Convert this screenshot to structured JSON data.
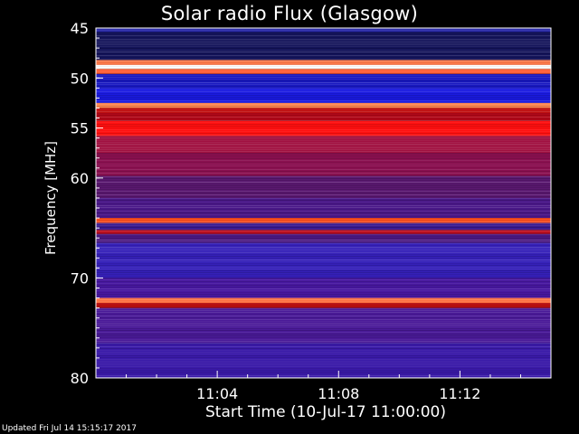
{
  "chart_data": {
    "type": "heatmap",
    "title": "Solar radio Flux (Glasgow)",
    "xlabel": "Start Time (10-Jul-17 11:00:00)",
    "ylabel": "Frequency [MHz]",
    "x_unit": "minutes after 11:00:00",
    "xlim": [
      0,
      15
    ],
    "ylim": [
      45,
      80
    ],
    "y_inverted": true,
    "x_ticks": [
      {
        "value": 4,
        "label": "11:04"
      },
      {
        "value": 8,
        "label": "11:08"
      },
      {
        "value": 12,
        "label": "11:12"
      }
    ],
    "y_ticks": [
      {
        "value": 45,
        "label": "45"
      },
      {
        "value": 50,
        "label": "50"
      },
      {
        "value": 55,
        "label": "55"
      },
      {
        "value": 60,
        "label": "60"
      },
      {
        "value": 70,
        "label": "70"
      },
      {
        "value": 80,
        "label": "80"
      }
    ],
    "bands": [
      {
        "from": 45.0,
        "to": 45.4,
        "color": "#2a2aa8"
      },
      {
        "from": 45.4,
        "to": 48.2,
        "color": "#14145a"
      },
      {
        "from": 48.2,
        "to": 48.7,
        "color": "#ff7a4a"
      },
      {
        "from": 48.7,
        "to": 49.1,
        "color": "#ffffff"
      },
      {
        "from": 49.1,
        "to": 49.6,
        "color": "#ff5a30"
      },
      {
        "from": 49.6,
        "to": 51.0,
        "color": "#1818c0"
      },
      {
        "from": 51.0,
        "to": 52.5,
        "color": "#1a1ae0"
      },
      {
        "from": 52.5,
        "to": 53.0,
        "color": "#ff8850"
      },
      {
        "from": 53.0,
        "to": 53.5,
        "color": "#c01010"
      },
      {
        "from": 53.5,
        "to": 54.3,
        "color": "#b00818"
      },
      {
        "from": 54.3,
        "to": 55.8,
        "color": "#ff1010"
      },
      {
        "from": 55.8,
        "to": 57.5,
        "color": "#a01040"
      },
      {
        "from": 57.5,
        "to": 59.8,
        "color": "#8a1050"
      },
      {
        "from": 59.8,
        "to": 62.0,
        "color": "#5a1870"
      },
      {
        "from": 62.0,
        "to": 64.0,
        "color": "#4a1888"
      },
      {
        "from": 64.0,
        "to": 64.5,
        "color": "#ff5020"
      },
      {
        "from": 64.5,
        "to": 65.2,
        "color": "#3a1a90"
      },
      {
        "from": 65.2,
        "to": 65.6,
        "color": "#c01020"
      },
      {
        "from": 65.6,
        "to": 66.5,
        "color": "#4a1880"
      },
      {
        "from": 66.5,
        "to": 70.0,
        "color": "#3520b8"
      },
      {
        "from": 70.0,
        "to": 72.0,
        "color": "#4818a0"
      },
      {
        "from": 72.0,
        "to": 72.5,
        "color": "#ff7040"
      },
      {
        "from": 72.5,
        "to": 73.0,
        "color": "#c01010"
      },
      {
        "from": 73.0,
        "to": 76.5,
        "color": "#4a1a98"
      },
      {
        "from": 76.5,
        "to": 80.0,
        "color": "#3a1aa8"
      }
    ],
    "grid": false,
    "legend": "none"
  },
  "footer": {
    "updated": "Updated Fri Jul 14 15:15:17 2017"
  }
}
